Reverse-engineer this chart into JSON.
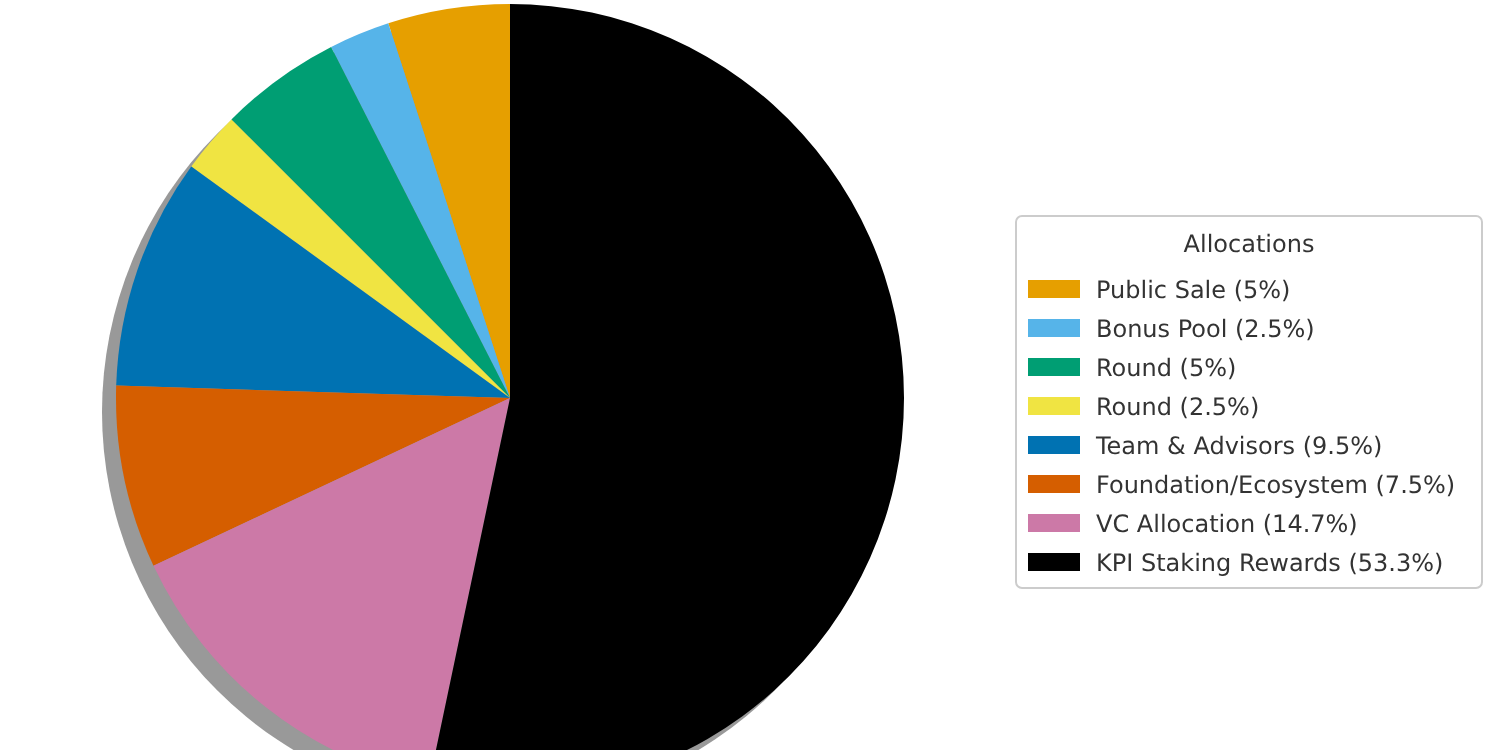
{
  "chart_data": {
    "type": "pie",
    "legend_title": "Allocations",
    "legend": "right",
    "categories": [
      "Public Sale (5%)",
      "Bonus Pool (2.5%)",
      "Round (5%)",
      "Round (2.5%)",
      "Team & Advisors (9.5%)",
      "Foundation/Ecosystem (7.5%)",
      "VC Allocation (14.7%)",
      "KPI Staking Rewards (53.3%)"
    ],
    "values": [
      5,
      2.5,
      5,
      2.5,
      9.5,
      7.5,
      14.7,
      53.3
    ],
    "colors": [
      "#e69f00",
      "#56b4e9",
      "#009e73",
      "#f0e442",
      "#0072b2",
      "#d55e00",
      "#cc79a7",
      "#000000"
    ]
  }
}
